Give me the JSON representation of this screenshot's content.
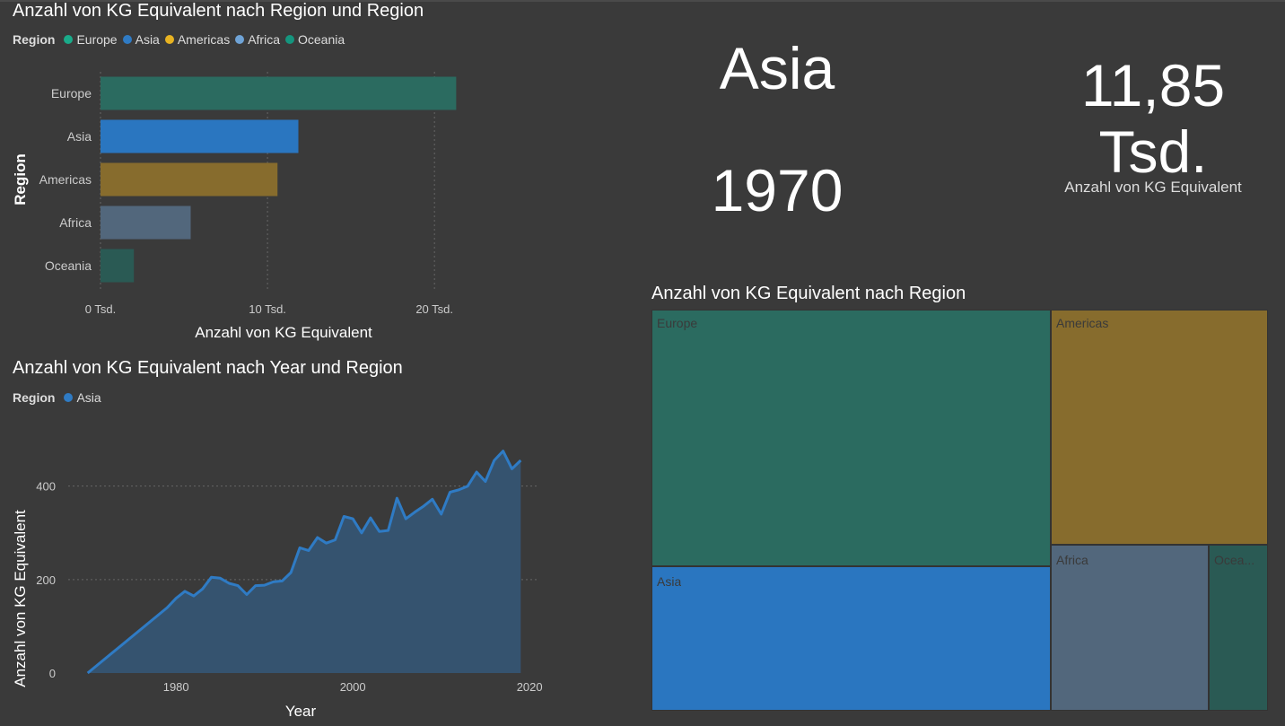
{
  "bar_visual": {
    "title": "Anzahl von KG Equivalent nach Region und Region",
    "legend_title": "Region",
    "legend": [
      {
        "label": "Europe",
        "color": "#1aab8a"
      },
      {
        "label": "Asia",
        "color": "#2f7bc4"
      },
      {
        "label": "Americas",
        "color": "#e8b322"
      },
      {
        "label": "Africa",
        "color": "#6fa3d6"
      },
      {
        "label": "Oceania",
        "color": "#15957e"
      }
    ]
  },
  "line_visual": {
    "title": "Anzahl von KG Equivalent nach Year und Region",
    "legend_title": "Region",
    "legend": [
      {
        "label": "Asia",
        "color": "#2f7bc4"
      }
    ]
  },
  "card_region": {
    "value": "Asia"
  },
  "card_year": {
    "value": "1970"
  },
  "card_kpi": {
    "value_line1": "11,85",
    "value_line2": "Tsd.",
    "label": "Anzahl von KG Equivalent"
  },
  "treemap_visual": {
    "title": "Anzahl von KG Equivalent nach Region",
    "tiles": [
      {
        "label": "Europe",
        "color": "#2b6b60"
      },
      {
        "label": "Americas",
        "color": "#876c2d"
      },
      {
        "label": "Asia",
        "color": "#2a76c0"
      },
      {
        "label": "Africa",
        "color": "#52677c"
      },
      {
        "label": "Ocea...",
        "color": "#2a5a54"
      }
    ]
  },
  "chart_data": [
    {
      "type": "bar",
      "orientation": "horizontal",
      "title": "Anzahl von KG Equivalent nach Region und Region",
      "xlabel": "Anzahl von KG Equivalent",
      "ylabel": "Region",
      "categories": [
        "Europe",
        "Asia",
        "Americas",
        "Africa",
        "Oceania"
      ],
      "values": [
        21300,
        11850,
        10600,
        5400,
        2000
      ],
      "colors": [
        "#2b6b60",
        "#2a76c0",
        "#876c2d",
        "#52677c",
        "#2a5a54"
      ],
      "xlim": [
        0,
        23000
      ],
      "xticks": [
        0,
        10000,
        20000
      ],
      "xtick_labels": [
        "0 Tsd.",
        "10 Tsd.",
        "20 Tsd."
      ],
      "grid": true,
      "legend": "top-left"
    },
    {
      "type": "area",
      "title": "Anzahl von KG Equivalent nach Year und Region",
      "xlabel": "Year",
      "ylabel": "Anzahl von KG Equivalent",
      "xlim": [
        1968,
        2021
      ],
      "ylim": [
        0,
        480
      ],
      "xticks": [
        1980,
        2000,
        2020
      ],
      "xtick_labels": [
        "1980",
        "2000",
        "2020"
      ],
      "yticks": [
        0,
        200,
        400
      ],
      "ytick_labels": [
        "0",
        "200",
        "400"
      ],
      "grid": true,
      "series": [
        {
          "name": "Asia",
          "color": "#2f7bc4",
          "fill": "#35536f",
          "x": [
            1970,
            1979,
            1980,
            1981,
            1982,
            1983,
            1984,
            1985,
            1986,
            1987,
            1988,
            1989,
            1990,
            1991,
            1992,
            1993,
            1994,
            1995,
            1996,
            1997,
            1998,
            1999,
            2000,
            2001,
            2002,
            2003,
            2004,
            2005,
            2006,
            2007,
            2008,
            2009,
            2010,
            2011,
            2012,
            2013,
            2014,
            2015,
            2016,
            2017,
            2018,
            2019
          ],
          "y": [
            0,
            140,
            160,
            175,
            165,
            180,
            205,
            203,
            192,
            187,
            168,
            187,
            188,
            195,
            197,
            215,
            268,
            262,
            290,
            278,
            285,
            335,
            330,
            300,
            332,
            303,
            305,
            374,
            330,
            344,
            357,
            372,
            340,
            387,
            392,
            400,
            430,
            410,
            455,
            475,
            437,
            455
          ]
        }
      ]
    },
    {
      "type": "treemap",
      "title": "Anzahl von KG Equivalent nach Region",
      "categories": [
        "Europe",
        "Asia",
        "Americas",
        "Africa",
        "Oceania"
      ],
      "values": [
        21300,
        11850,
        10600,
        5400,
        2000
      ]
    }
  ]
}
